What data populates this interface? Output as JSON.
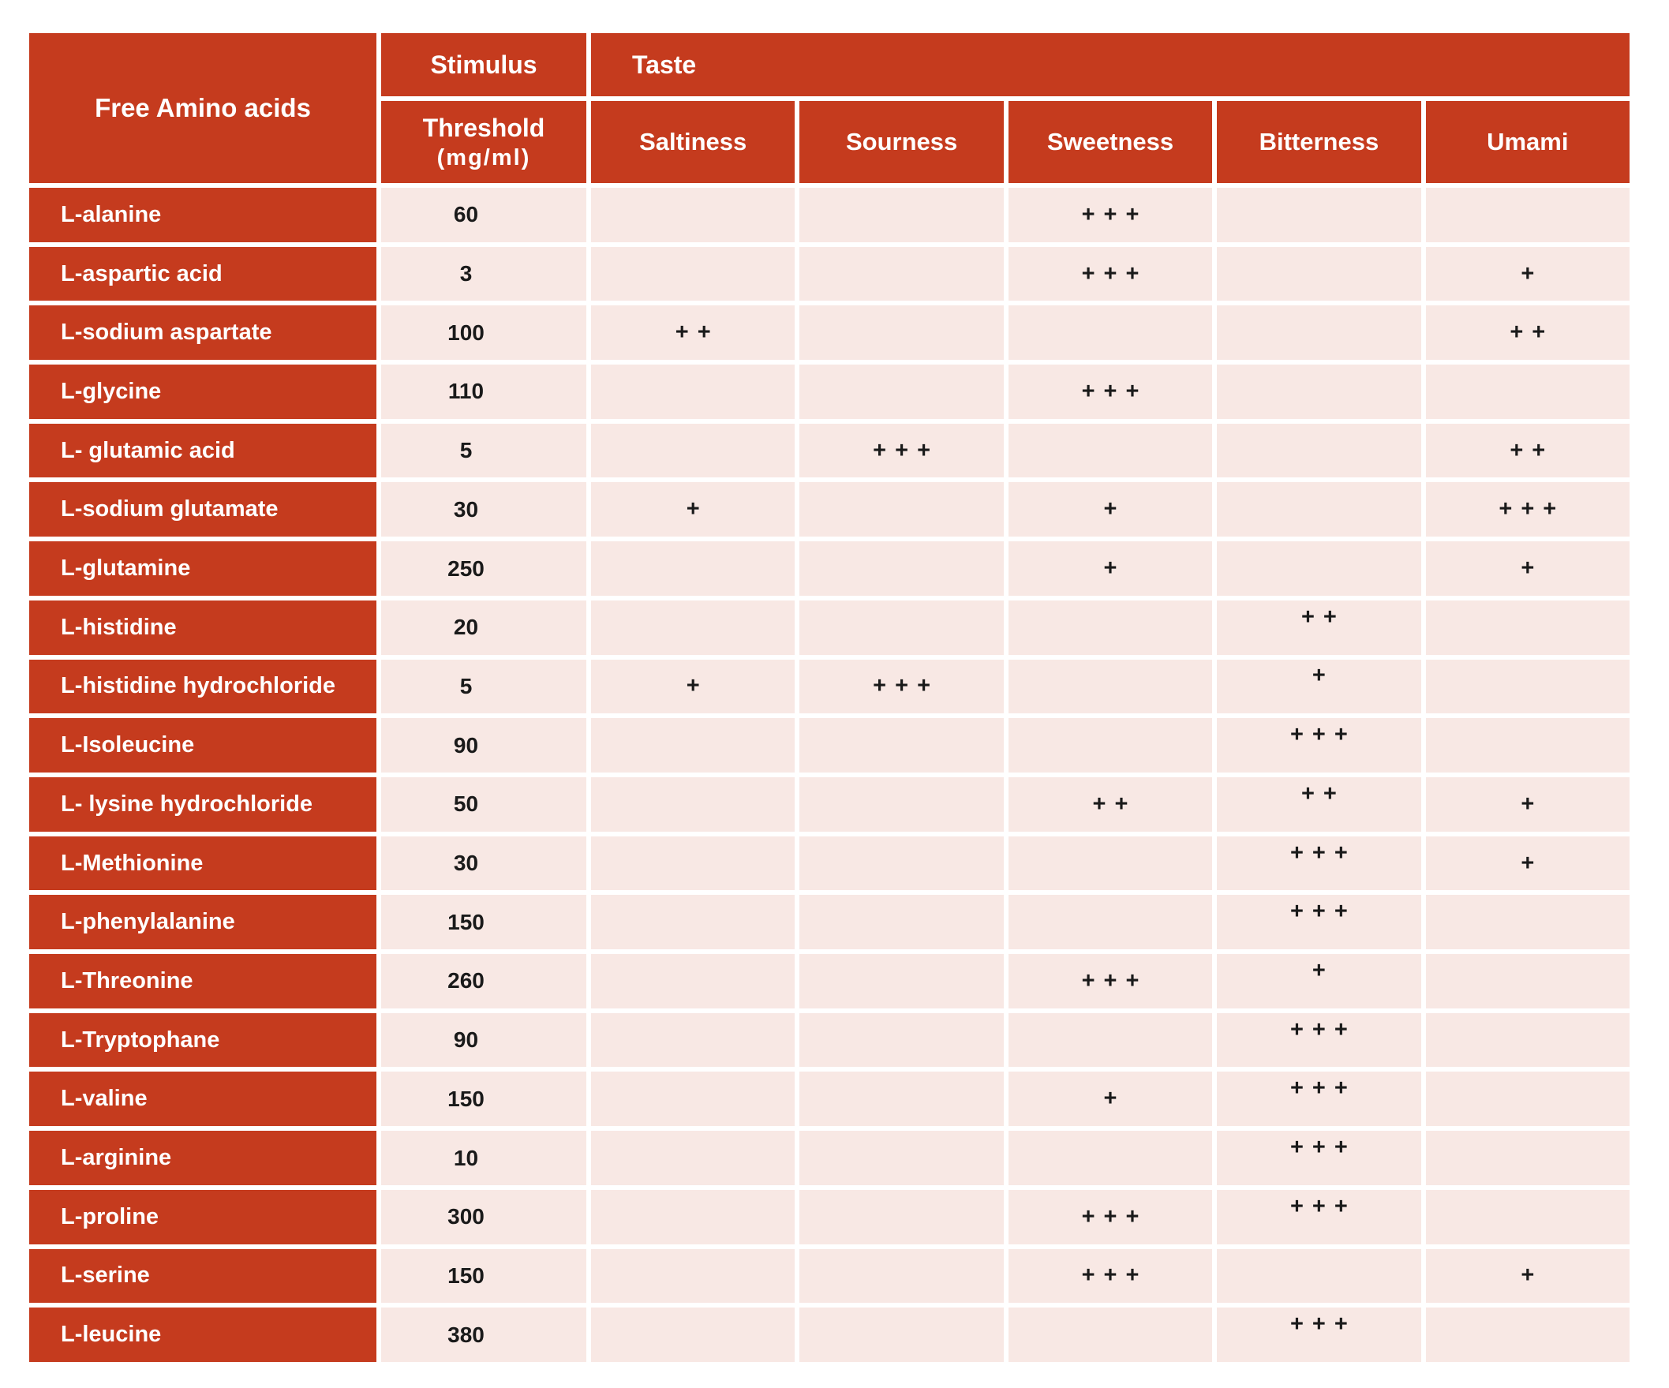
{
  "table": {
    "header": {
      "free_amino_acids": "Free Amino acids",
      "stimulus": "Stimulus",
      "threshold": "Threshold",
      "threshold_unit": "(mg/ml)",
      "taste": "Taste",
      "taste_columns": [
        "Saltiness",
        "Sourness",
        "Sweetness",
        "Bitterness",
        "Umami"
      ]
    },
    "rows": [
      {
        "name": "L-alanine",
        "threshold": "60",
        "tastes": [
          "",
          "",
          "+++",
          "",
          ""
        ]
      },
      {
        "name": "L-aspartic acid",
        "threshold": "3",
        "tastes": [
          "",
          "",
          "+++",
          "",
          "+"
        ]
      },
      {
        "name": "L-sodium aspartate",
        "threshold": "100",
        "tastes": [
          "++",
          "",
          "",
          "",
          "++"
        ]
      },
      {
        "name": "L-glycine",
        "threshold": "110",
        "tastes": [
          "",
          "",
          "+++",
          "",
          ""
        ]
      },
      {
        "name": "L- glutamic acid",
        "threshold": "5",
        "tastes": [
          "",
          "+++",
          "",
          "",
          "++"
        ]
      },
      {
        "name": "L-sodium glutamate",
        "threshold": "30",
        "tastes": [
          "+",
          "",
          "+",
          "",
          "+++"
        ]
      },
      {
        "name": "L-glutamine",
        "threshold": "250",
        "tastes": [
          "",
          "",
          "+",
          "",
          "+"
        ]
      },
      {
        "name": "L-histidine",
        "threshold": "20",
        "tastes": [
          "",
          "",
          "",
          "++",
          ""
        ]
      },
      {
        "name": "L-histidine hydrochloride",
        "threshold": "5",
        "tastes": [
          "+",
          "+++",
          "",
          "+",
          ""
        ]
      },
      {
        "name": "L-Isoleucine",
        "threshold": "90",
        "tastes": [
          "",
          "",
          "",
          "+++",
          ""
        ]
      },
      {
        "name": "L- lysine hydrochloride",
        "threshold": "50",
        "tastes": [
          "",
          "",
          "++",
          "++",
          "+"
        ]
      },
      {
        "name": "L-Methionine",
        "threshold": "30",
        "tastes": [
          "",
          "",
          "",
          "+++",
          "+"
        ]
      },
      {
        "name": "L-phenylalanine",
        "threshold": "150",
        "tastes": [
          "",
          "",
          "",
          "+++",
          ""
        ]
      },
      {
        "name": "L-Threonine",
        "threshold": "260",
        "tastes": [
          "",
          "",
          "+++",
          "+",
          ""
        ]
      },
      {
        "name": "L-Tryptophane",
        "threshold": "90",
        "tastes": [
          "",
          "",
          "",
          "+++",
          ""
        ]
      },
      {
        "name": "L-valine",
        "threshold": "150",
        "tastes": [
          "",
          "",
          "+",
          "+++",
          ""
        ]
      },
      {
        "name": "L-arginine",
        "threshold": "10",
        "tastes": [
          "",
          "",
          "",
          "+++",
          ""
        ]
      },
      {
        "name": "L-proline",
        "threshold": "300",
        "tastes": [
          "",
          "",
          "+++",
          "+++",
          ""
        ]
      },
      {
        "name": "L-serine",
        "threshold": "150",
        "tastes": [
          "",
          "",
          "+++",
          "",
          "+"
        ]
      },
      {
        "name": "L-leucine",
        "threshold": "380",
        "tastes": [
          "",
          "",
          "",
          "+++",
          ""
        ]
      }
    ]
  },
  "colors": {
    "header_red": "#C53B1E",
    "row_pink": "#F8E8E4",
    "grid_white": "#FFFFFF",
    "value_black": "#1A1A1A"
  }
}
